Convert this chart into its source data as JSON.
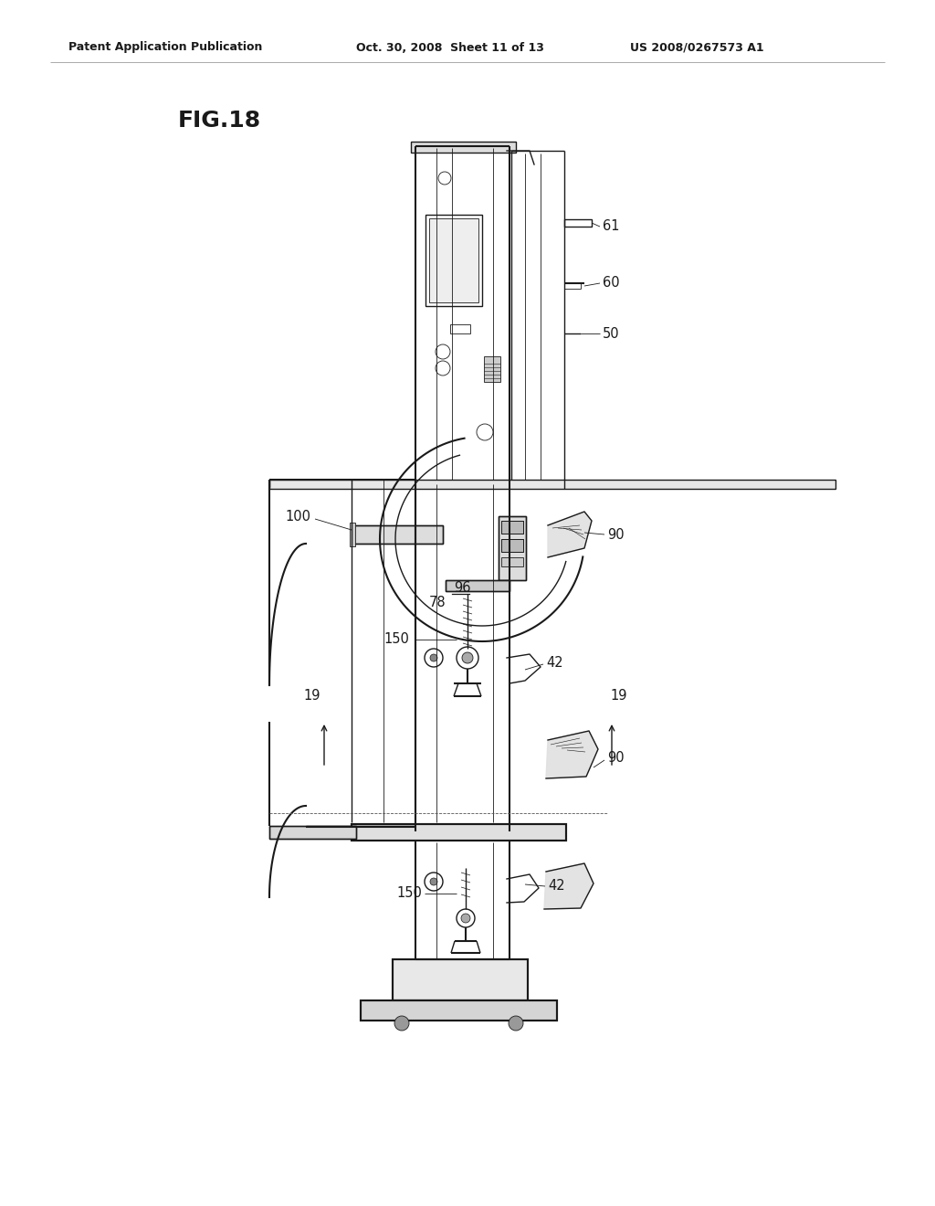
{
  "header_left": "Patent Application Publication",
  "header_center": "Oct. 30, 2008  Sheet 11 of 13",
  "header_right": "US 2008/0267573 A1",
  "fig_label": "FIG.18",
  "background_color": "#ffffff",
  "line_color": "#1a1a1a"
}
